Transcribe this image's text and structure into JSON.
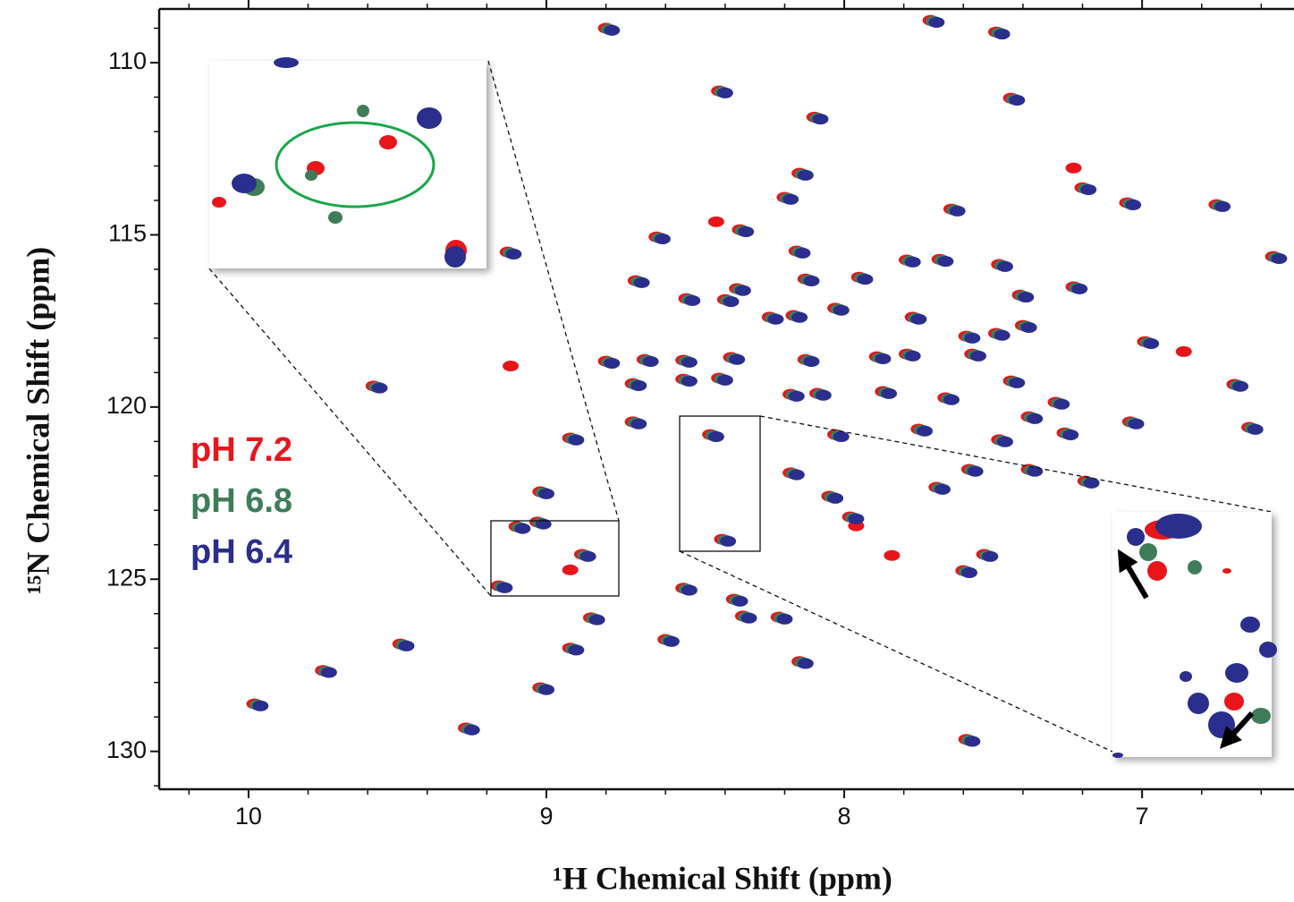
{
  "chart_data": {
    "type": "scatter",
    "x_label": "¹H Chemical Shift (ppm)",
    "y_label": "¹⁵N Chemical Shift (ppm)",
    "xlim": [
      10.3,
      6.49
    ],
    "ylim": [
      108.44,
      131.1
    ],
    "xticks": [
      10,
      9,
      8,
      7
    ],
    "yticks": [
      110,
      115,
      120,
      125,
      130
    ],
    "xminor_ticks": [
      10.2,
      9.8,
      9.6,
      9.4,
      9.2,
      8.8,
      8.6,
      8.4,
      8.2,
      7.8,
      7.6,
      7.4,
      7.2,
      6.8,
      6.6
    ],
    "yminor_ticks": [
      109,
      111,
      112,
      113,
      114,
      116,
      117,
      118,
      119,
      121,
      122,
      123,
      124,
      126,
      127,
      128,
      129,
      131
    ],
    "series": [
      {
        "name": "pH 7.2",
        "color": "#e8161b",
        "x": [
          8.8,
          7.71,
          7.49,
          8.42,
          7.44,
          8.1,
          8.15,
          8.2,
          7.2,
          7.05,
          6.75,
          7.64,
          8.63,
          9.13,
          8.35,
          8.16,
          6.56,
          7.79,
          7.68,
          7.48,
          7.95,
          8.13,
          8.7,
          8.36,
          7.23,
          8.53,
          8.4,
          7.41,
          8.03,
          8.17,
          8.25,
          7.77,
          7.59,
          7.49,
          7.4,
          6.99,
          8.8,
          8.67,
          8.54,
          8.38,
          8.13,
          7.89,
          7.79,
          7.57,
          6.69,
          9.58,
          8.71,
          8.54,
          8.42,
          8.18,
          8.09,
          7.87,
          7.44,
          7.66,
          7.29,
          7.38,
          7.04,
          6.64,
          8.71,
          8.03,
          7.75,
          7.48,
          7.26,
          8.92,
          8.45,
          8.18,
          8.05,
          7.58,
          7.38,
          7.19,
          7.69,
          9.02,
          9.03,
          9.1,
          8.88,
          9.16,
          8.85,
          8.92,
          8.6,
          8.54,
          8.34,
          8.22,
          8.37,
          9.02,
          8.15,
          7.6,
          7.53,
          9.98,
          9.75,
          9.49,
          9.27,
          7.59,
          8.41,
          7.98,
          9.12,
          7.23,
          8.43,
          8.92,
          7.96,
          7.84,
          6.86
        ],
        "values": [
          109.0,
          108.77,
          109.11,
          110.82,
          111.03,
          111.58,
          113.21,
          113.91,
          113.63,
          114.07,
          114.12,
          114.25,
          115.06,
          115.5,
          114.85,
          115.47,
          115.63,
          115.73,
          115.71,
          115.86,
          116.23,
          116.28,
          116.33,
          116.56,
          116.51,
          116.85,
          116.88,
          116.75,
          117.13,
          117.34,
          117.39,
          117.39,
          117.94,
          117.86,
          117.63,
          118.1,
          118.67,
          118.62,
          118.64,
          118.56,
          118.62,
          118.54,
          118.46,
          118.46,
          119.34,
          119.39,
          119.32,
          119.19,
          119.16,
          119.63,
          119.6,
          119.55,
          119.24,
          119.73,
          119.86,
          120.28,
          120.43,
          120.59,
          120.43,
          120.8,
          120.64,
          120.95,
          120.75,
          120.9,
          120.8,
          121.91,
          122.59,
          121.81,
          121.81,
          122.15,
          122.33,
          122.46,
          123.34,
          123.47,
          124.28,
          125.19,
          126.12,
          127.0,
          126.75,
          125.26,
          126.07,
          126.1,
          125.58,
          128.15,
          127.39,
          124.75,
          124.28,
          128.62,
          127.65,
          126.88,
          129.32,
          129.65,
          123.84,
          123.19,
          118.81,
          113.06,
          114.62,
          124.73,
          123.45,
          124.31,
          118.39
        ]
      },
      {
        "name": "pH 6.8",
        "color": "#3e7d58",
        "x": [
          8.79,
          7.7,
          7.48,
          8.41,
          7.43,
          8.09,
          8.14,
          8.19,
          7.19,
          7.04,
          6.74,
          7.63,
          8.62,
          9.12,
          8.34,
          8.15,
          6.55,
          7.78,
          7.67,
          7.47,
          7.94,
          8.12,
          8.69,
          8.35,
          7.22,
          8.52,
          8.39,
          7.4,
          8.02,
          8.16,
          8.24,
          7.76,
          7.58,
          7.48,
          7.39,
          6.98,
          8.79,
          8.66,
          8.53,
          8.37,
          8.12,
          7.88,
          7.78,
          7.56,
          6.68,
          9.57,
          8.7,
          8.53,
          8.41,
          8.17,
          8.08,
          7.86,
          7.43,
          7.65,
          7.28,
          7.37,
          7.03,
          6.63,
          8.7,
          8.02,
          7.74,
          7.47,
          7.25,
          8.91,
          8.44,
          8.17,
          8.04,
          7.57,
          7.37,
          7.18,
          7.68,
          9.01,
          9.02,
          9.09,
          8.87,
          9.15,
          8.84,
          8.91,
          8.59,
          8.53,
          8.33,
          8.21,
          8.36,
          9.01,
          8.14,
          7.59,
          7.52,
          9.97,
          9.74,
          9.48,
          9.26,
          7.58,
          8.4,
          7.97
        ],
        "values": [
          109.03,
          108.8,
          109.14,
          110.85,
          111.06,
          111.61,
          113.24,
          113.94,
          113.66,
          114.1,
          114.15,
          114.28,
          115.09,
          115.53,
          114.88,
          115.5,
          115.66,
          115.76,
          115.74,
          115.89,
          116.26,
          116.31,
          116.36,
          116.59,
          116.54,
          116.88,
          116.91,
          116.78,
          117.16,
          117.37,
          117.42,
          117.42,
          117.97,
          117.89,
          117.66,
          118.13,
          118.7,
          118.65,
          118.67,
          118.59,
          118.65,
          118.57,
          118.49,
          118.49,
          119.37,
          119.42,
          119.35,
          119.22,
          119.19,
          119.66,
          119.63,
          119.58,
          119.27,
          119.76,
          119.89,
          120.31,
          120.46,
          120.62,
          120.46,
          120.83,
          120.67,
          120.98,
          120.78,
          120.93,
          120.83,
          121.94,
          122.62,
          121.84,
          121.84,
          122.18,
          122.36,
          122.49,
          123.37,
          123.5,
          124.31,
          125.22,
          126.15,
          127.03,
          126.78,
          125.29,
          126.1,
          126.13,
          125.61,
          128.18,
          127.42,
          124.78,
          124.31,
          128.65,
          127.68,
          126.91,
          129.35,
          129.68,
          123.87,
          123.22
        ]
      },
      {
        "name": "pH 6.4",
        "color": "#2a2e8c",
        "x": [
          8.78,
          7.69,
          7.47,
          8.4,
          7.42,
          8.08,
          8.13,
          8.18,
          7.18,
          7.03,
          6.73,
          7.62,
          8.61,
          9.11,
          8.33,
          8.14,
          6.54,
          7.77,
          7.66,
          7.46,
          7.93,
          8.11,
          8.68,
          8.34,
          7.21,
          8.51,
          8.38,
          7.39,
          8.01,
          8.15,
          8.23,
          7.75,
          7.57,
          7.47,
          7.38,
          6.97,
          8.78,
          8.65,
          8.52,
          8.36,
          8.11,
          7.87,
          7.77,
          7.55,
          6.67,
          9.56,
          8.69,
          8.52,
          8.4,
          8.16,
          8.07,
          7.85,
          7.42,
          7.64,
          7.27,
          7.36,
          7.02,
          6.62,
          8.69,
          8.01,
          7.73,
          7.46,
          7.24,
          8.9,
          8.43,
          8.16,
          8.03,
          7.56,
          7.36,
          7.17,
          7.67,
          9.0,
          9.01,
          9.08,
          8.86,
          9.14,
          8.83,
          8.9,
          8.58,
          8.52,
          8.32,
          8.2,
          8.35,
          9.0,
          8.13,
          7.58,
          7.51,
          9.96,
          9.73,
          9.47,
          9.25,
          7.57,
          8.39,
          7.96
        ],
        "values": [
          109.06,
          108.83,
          109.17,
          110.88,
          111.09,
          111.64,
          113.27,
          113.97,
          113.69,
          114.13,
          114.18,
          114.31,
          115.12,
          115.56,
          114.91,
          115.53,
          115.69,
          115.79,
          115.77,
          115.92,
          116.29,
          116.34,
          116.39,
          116.62,
          116.57,
          116.91,
          116.94,
          116.81,
          117.19,
          117.4,
          117.45,
          117.45,
          118.0,
          117.92,
          117.69,
          118.16,
          118.73,
          118.68,
          118.7,
          118.62,
          118.68,
          118.6,
          118.52,
          118.52,
          119.4,
          119.45,
          119.38,
          119.25,
          119.22,
          119.69,
          119.66,
          119.61,
          119.3,
          119.79,
          119.92,
          120.34,
          120.49,
          120.65,
          120.49,
          120.86,
          120.7,
          121.01,
          120.81,
          120.96,
          120.86,
          121.97,
          122.65,
          121.87,
          121.87,
          122.21,
          122.39,
          122.52,
          123.4,
          123.53,
          124.34,
          125.25,
          126.18,
          127.06,
          126.81,
          125.32,
          126.13,
          126.16,
          125.64,
          128.21,
          127.45,
          124.81,
          124.34,
          128.68,
          127.71,
          126.94,
          129.38,
          129.71,
          123.9,
          123.25
        ]
      }
    ]
  }
}
